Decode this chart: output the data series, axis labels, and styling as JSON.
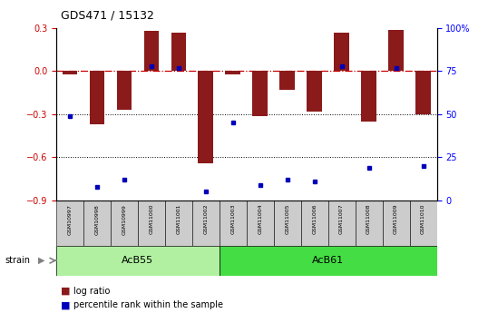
{
  "title": "GDS471 / 15132",
  "samples": [
    "GSM10997",
    "GSM10998",
    "GSM10999",
    "GSM11000",
    "GSM11001",
    "GSM11002",
    "GSM11003",
    "GSM11004",
    "GSM11005",
    "GSM11006",
    "GSM11007",
    "GSM11008",
    "GSM11009",
    "GSM11010"
  ],
  "log_ratio": [
    -0.02,
    -0.37,
    -0.27,
    0.28,
    0.27,
    -0.64,
    -0.02,
    -0.31,
    -0.13,
    -0.28,
    0.27,
    -0.35,
    0.29,
    -0.3
  ],
  "percentile_rank": [
    49,
    8,
    12,
    78,
    77,
    5,
    45,
    9,
    12,
    11,
    78,
    19,
    77,
    20
  ],
  "groups": [
    {
      "label": "AcB55",
      "start": 0,
      "end": 5,
      "color": "#b0f0a0"
    },
    {
      "label": "AcB61",
      "start": 6,
      "end": 13,
      "color": "#44dd44"
    }
  ],
  "bar_color": "#8b1a1a",
  "dot_color": "#0000bb",
  "ylim_left": [
    -0.9,
    0.3
  ],
  "ylim_right": [
    0,
    100
  ],
  "yticks_left": [
    -0.9,
    -0.6,
    -0.3,
    0.0,
    0.3
  ],
  "yticks_right": [
    0,
    25,
    50,
    75,
    100
  ],
  "hline_zero_color": "#cc0000",
  "hline_dotted_color": "black",
  "legend_items": [
    "log ratio",
    "percentile rank within the sample"
  ],
  "strain_label": "strain"
}
